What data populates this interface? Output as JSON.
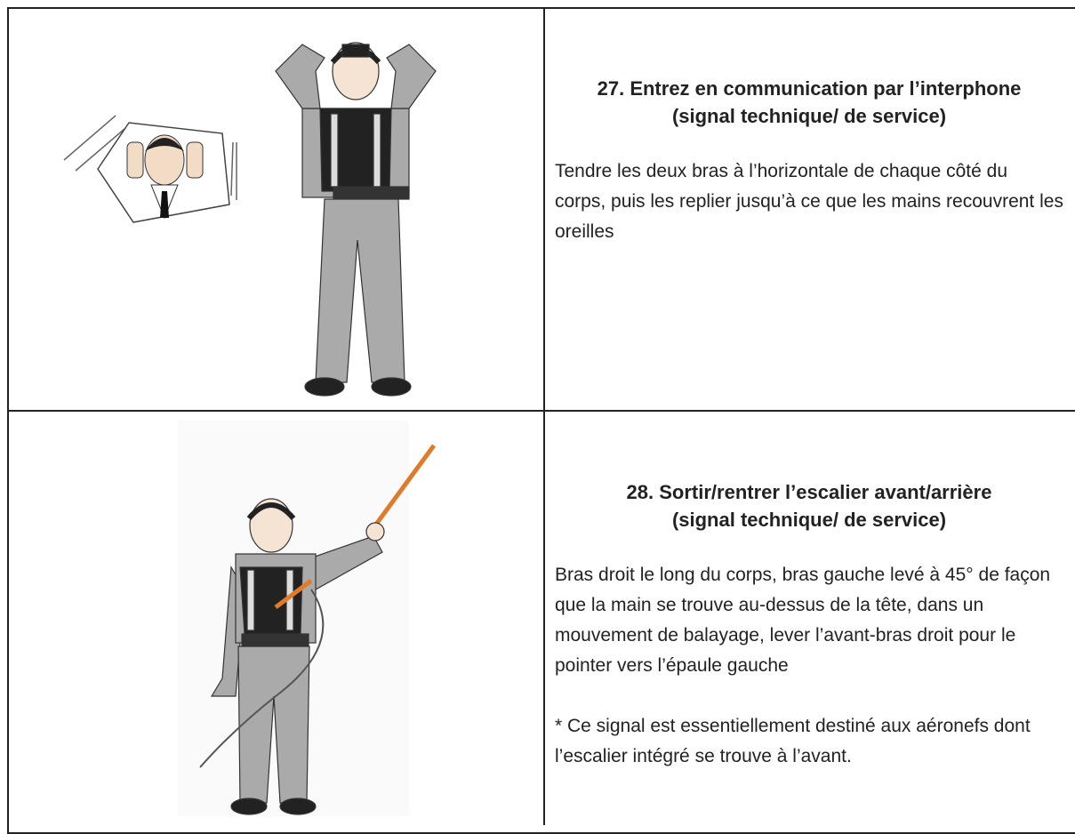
{
  "table": {
    "rows": [
      {
        "title": [
          "27. Entrez en communication par l’interphone",
          "(signal technique/ de  service)"
        ],
        "description": "Tendre les deux bras à l’horizontale de chaque côté du corps, puis les replier jusqu’à ce que les mains recouvrent les  oreilles"
      },
      {
        "title": [
          "28. Sortir/rentrer l’escalier avant/arrière",
          "(signal technique/ de  service)"
        ],
        "description": "Bras droit le long du corps, bras gauche levé à 45° de façon que la main se trouve au-dessus de la tête, dans un mouvement de balayage, lever l’avant-bras droit pour le pointer vers l’épaule gauche",
        "note": "* Ce signal est essentiellement destiné aux aéronefs dont l’escalier intégré se trouve à l’avant."
      }
    ]
  }
}
